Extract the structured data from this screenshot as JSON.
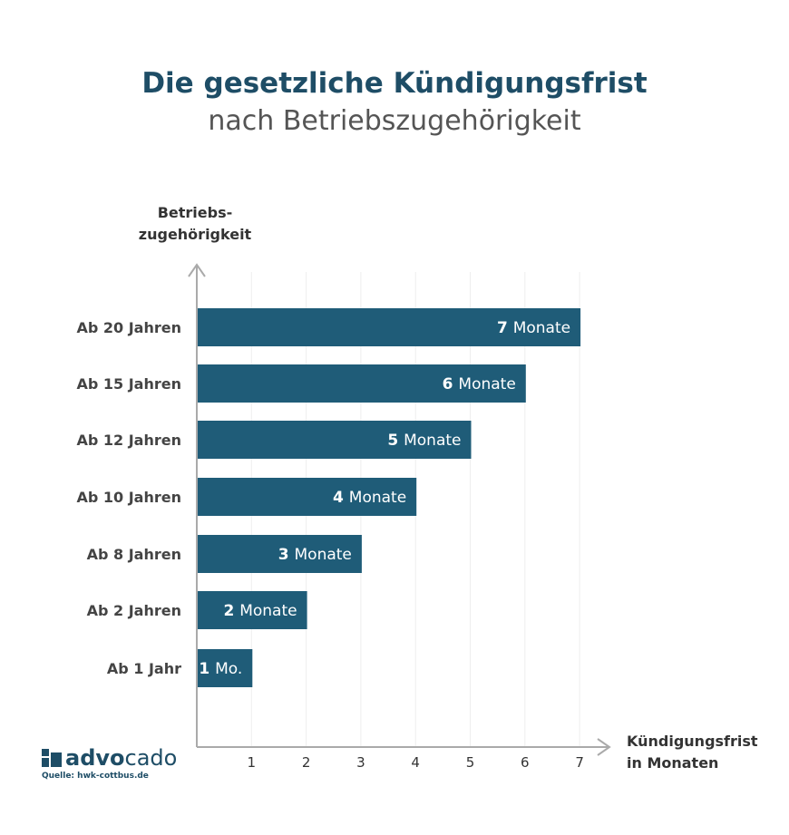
{
  "title": "Die gesetzliche Kündigungsfrist",
  "subtitle": "nach Betriebszugehörigkeit",
  "chart_data": {
    "type": "bar",
    "orientation": "horizontal",
    "ylabel_lines": [
      "Betriebs-",
      "zugehörigkeit"
    ],
    "xlabel_lines": [
      "Kündigungsfrist",
      "in Monaten"
    ],
    "categories": [
      "Ab 20 Jahren",
      "Ab 15 Jahren",
      "Ab 12 Jahren",
      "Ab 10 Jahren",
      "Ab 8 Jahren",
      "Ab 2 Jahren",
      "Ab 1 Jahr"
    ],
    "values": [
      7,
      6,
      5,
      4,
      3,
      2,
      1
    ],
    "data_labels": [
      [
        "7",
        "Monate"
      ],
      [
        "6",
        "Monate"
      ],
      [
        "5",
        "Monate"
      ],
      [
        "4",
        "Monate"
      ],
      [
        "3",
        "Monate"
      ],
      [
        "2",
        "Monate"
      ],
      [
        "1",
        "Mo."
      ]
    ],
    "xticks": [
      "1",
      "2",
      "3",
      "4",
      "5",
      "6",
      "7"
    ],
    "xlim": [
      0,
      7
    ],
    "grid": "vertical",
    "bar_color": "#1f5c78"
  },
  "logo": {
    "text_bold": "advo",
    "text_light": "cado"
  },
  "source": "Quelle: hwk-cottbus.de"
}
